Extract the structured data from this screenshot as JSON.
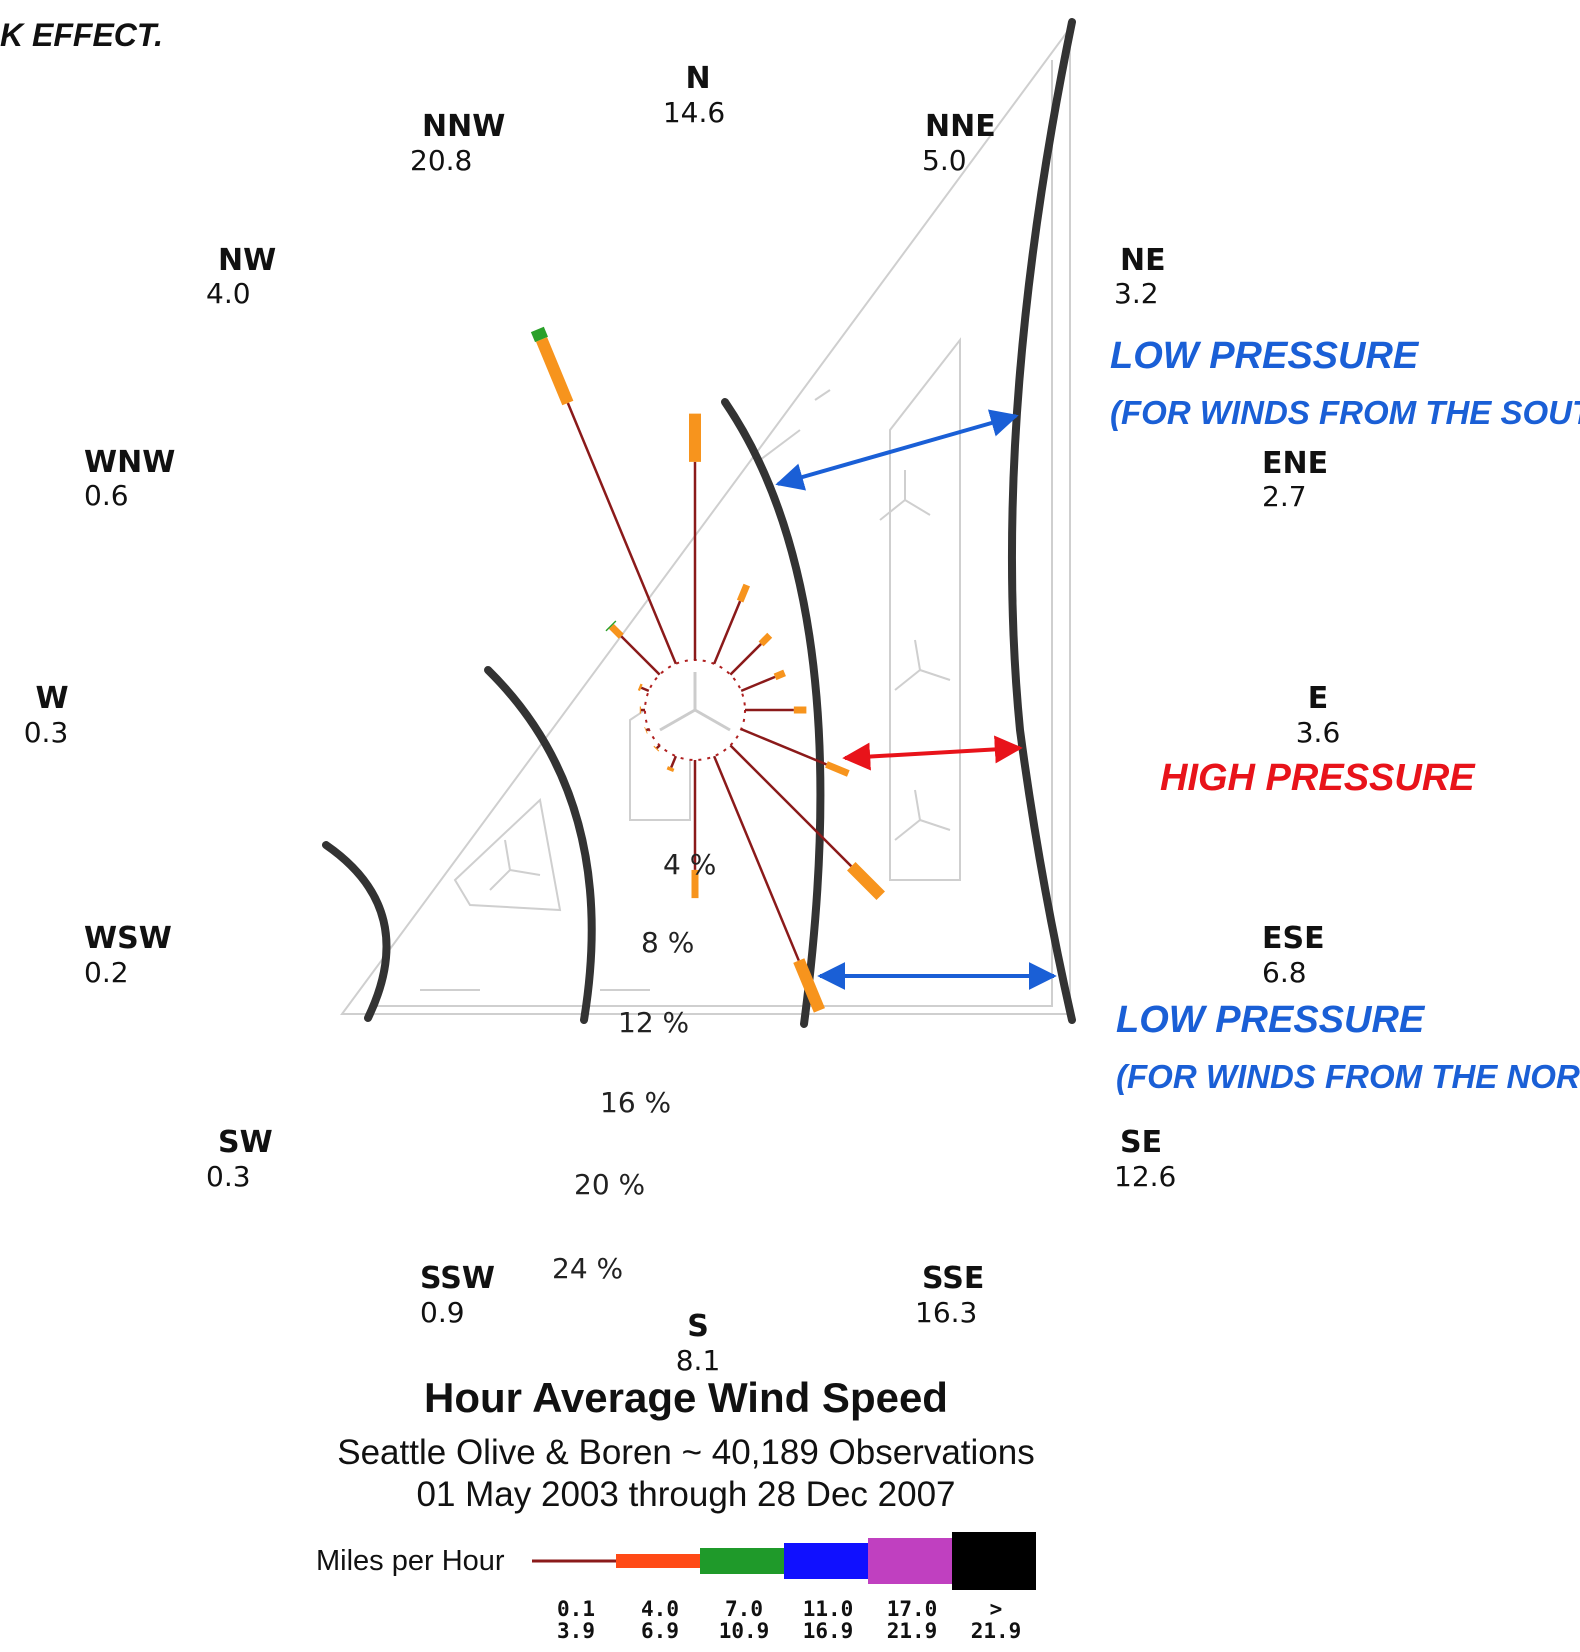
{
  "heading_fragment": "K EFFECT.",
  "chart_data": {
    "type": "wind-rose",
    "title": "Hour Average Wind Speed",
    "subtitle_lines": [
      "Seattle Olive & Boren ~ 40,189 Observations",
      "01 May 2003 through 28 Dec 2007"
    ],
    "directions": [
      {
        "name": "N",
        "value": "14.6"
      },
      {
        "name": "NNE",
        "value": "5.0"
      },
      {
        "name": "NE",
        "value": "3.2"
      },
      {
        "name": "ENE",
        "value": "2.7"
      },
      {
        "name": "E",
        "value": "3.6"
      },
      {
        "name": "ESE",
        "value": "6.8"
      },
      {
        "name": "SE",
        "value": "12.6"
      },
      {
        "name": "SSE",
        "value": "16.3"
      },
      {
        "name": "S",
        "value": "8.1"
      },
      {
        "name": "SSW",
        "value": "0.9"
      },
      {
        "name": "SW",
        "value": "0.3"
      },
      {
        "name": "WSW",
        "value": "0.2"
      },
      {
        "name": "W",
        "value": "0.3"
      },
      {
        "name": "WNW",
        "value": "0.6"
      },
      {
        "name": "NW",
        "value": "4.0"
      },
      {
        "name": "NNW",
        "value": "20.8"
      }
    ],
    "ring_labels": [
      "4 %",
      "8 %",
      "12 %",
      "16 %",
      "20 %",
      "24 %"
    ],
    "speed_bins": [
      {
        "range_top": "0.1",
        "range_bottom": "3.9",
        "color": "#8b1a1a"
      },
      {
        "range_top": "4.0",
        "range_bottom": "6.9",
        "color": "#ff4a16"
      },
      {
        "range_top": "7.0",
        "range_bottom": "10.9",
        "color": "#1f9a2a"
      },
      {
        "range_top": "11.0",
        "range_bottom": "16.9",
        "color": "#1010ff"
      },
      {
        "range_top": "17.0",
        "range_bottom": "21.9",
        "color": "#c040c0"
      },
      {
        "range_top": ">",
        "range_bottom": "21.9",
        "color": "#000000"
      }
    ],
    "legend_title": "Miles per Hour"
  },
  "annotations": {
    "low_south_title": "LOW PRESSURE",
    "low_south_sub": "(FOR WINDS FROM THE SOUTH)",
    "high_title": "HIGH PRESSURE",
    "low_north_title": "LOW PRESSURE",
    "low_north_sub": "(FOR WINDS FROM THE NORTH)"
  },
  "colors": {
    "spoke": "#8b1a1a",
    "mid_speed": "#f7941d",
    "high_speed": "#2aa02a",
    "low_pressure": "#1a5fd6",
    "high_pressure": "#e8131a",
    "building_curve": "#333333"
  }
}
